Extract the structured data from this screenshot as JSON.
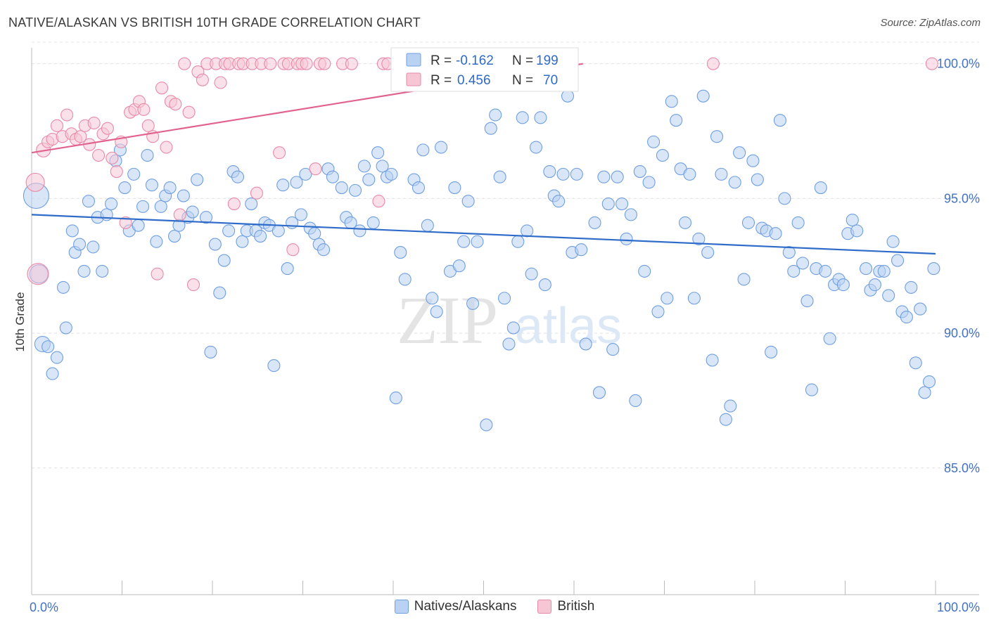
{
  "title": "NATIVE/ALASKAN VS BRITISH 10TH GRADE CORRELATION CHART",
  "source": "Source: ZipAtlas.com",
  "chart_data": {
    "type": "scatter",
    "ylabel": "10th Grade",
    "xlim": [
      0,
      100
    ],
    "ylim": [
      80.3,
      100.8
    ],
    "x_tick_labels": [
      "0.0%",
      "100.0%"
    ],
    "y_ticks": [
      85,
      90,
      95,
      100
    ],
    "y_tick_labels": [
      "85.0%",
      "90.0%",
      "95.0%",
      "100.0%"
    ],
    "grid": true,
    "legend_position": "top-center",
    "series": [
      {
        "name": "Natives/Alaskans",
        "color": "#6f9fe0",
        "fill": "#b9d1f3",
        "R": "-0.162",
        "N": "199",
        "trend": [
          [
            0,
            94.4
          ],
          [
            100,
            92.95
          ]
        ],
        "points": [
          [
            0.5,
            95.1
          ],
          [
            0.8,
            92.2
          ],
          [
            1.2,
            89.6
          ],
          [
            1.8,
            89.5
          ],
          [
            2.3,
            88.5
          ],
          [
            2.8,
            89.1
          ],
          [
            3.5,
            91.7
          ],
          [
            3.8,
            90.2
          ],
          [
            4.5,
            93.8
          ],
          [
            4.8,
            93.0
          ],
          [
            5.3,
            93.3
          ],
          [
            5.8,
            92.3
          ],
          [
            6.3,
            94.9
          ],
          [
            6.8,
            93.2
          ],
          [
            7.3,
            94.3
          ],
          [
            7.8,
            92.3
          ],
          [
            8.3,
            94.4
          ],
          [
            8.8,
            94.8
          ],
          [
            9.3,
            96.4
          ],
          [
            9.8,
            96.8
          ],
          [
            10.3,
            95.4
          ],
          [
            10.8,
            93.8
          ],
          [
            11.3,
            95.9
          ],
          [
            11.8,
            94.0
          ],
          [
            12.3,
            94.7
          ],
          [
            12.8,
            96.6
          ],
          [
            13.3,
            95.5
          ],
          [
            13.8,
            93.4
          ],
          [
            14.3,
            94.7
          ],
          [
            14.8,
            95.1
          ],
          [
            15.3,
            95.4
          ],
          [
            15.8,
            93.6
          ],
          [
            16.3,
            94.0
          ],
          [
            16.8,
            95.1
          ],
          [
            17.3,
            94.3
          ],
          [
            17.8,
            94.5
          ],
          [
            18.3,
            95.7
          ],
          [
            19.3,
            94.3
          ],
          [
            19.8,
            89.3
          ],
          [
            20.3,
            93.3
          ],
          [
            20.8,
            91.5
          ],
          [
            21.3,
            92.7
          ],
          [
            21.8,
            93.8
          ],
          [
            22.3,
            96.0
          ],
          [
            22.8,
            95.8
          ],
          [
            23.3,
            93.4
          ],
          [
            23.8,
            93.8
          ],
          [
            24.3,
            94.8
          ],
          [
            24.8,
            93.8
          ],
          [
            25.3,
            93.6
          ],
          [
            25.8,
            94.1
          ],
          [
            26.3,
            94.0
          ],
          [
            26.8,
            88.8
          ],
          [
            27.3,
            93.8
          ],
          [
            27.8,
            95.5
          ],
          [
            28.3,
            92.4
          ],
          [
            28.8,
            94.1
          ],
          [
            29.3,
            95.6
          ],
          [
            29.8,
            94.4
          ],
          [
            30.3,
            95.9
          ],
          [
            30.8,
            93.9
          ],
          [
            31.3,
            93.7
          ],
          [
            31.8,
            93.3
          ],
          [
            32.3,
            93.1
          ],
          [
            32.8,
            96.1
          ],
          [
            33.3,
            95.8
          ],
          [
            34.3,
            95.4
          ],
          [
            34.8,
            94.3
          ],
          [
            35.3,
            94.1
          ],
          [
            35.8,
            95.3
          ],
          [
            36.3,
            93.8
          ],
          [
            36.8,
            96.2
          ],
          [
            37.3,
            95.7
          ],
          [
            37.8,
            94.1
          ],
          [
            38.3,
            96.7
          ],
          [
            38.8,
            96.2
          ],
          [
            39.3,
            95.8
          ],
          [
            39.8,
            95.9
          ],
          [
            40.3,
            87.6
          ],
          [
            40.8,
            93.0
          ],
          [
            41.3,
            92.0
          ],
          [
            42.3,
            95.7
          ],
          [
            42.8,
            95.4
          ],
          [
            43.3,
            96.8
          ],
          [
            43.8,
            94.0
          ],
          [
            44.3,
            91.3
          ],
          [
            44.8,
            90.8
          ],
          [
            45.3,
            96.9
          ],
          [
            46.3,
            92.3
          ],
          [
            46.8,
            95.4
          ],
          [
            47.3,
            92.5
          ],
          [
            47.8,
            93.4
          ],
          [
            48.3,
            94.9
          ],
          [
            48.8,
            91.1
          ],
          [
            49.3,
            93.4
          ],
          [
            50.3,
            86.6
          ],
          [
            50.8,
            97.6
          ],
          [
            51.3,
            98.1
          ],
          [
            51.8,
            95.8
          ],
          [
            52.3,
            91.3
          ],
          [
            52.8,
            89.6
          ],
          [
            53.3,
            90.2
          ],
          [
            53.8,
            93.4
          ],
          [
            54.3,
            98.0
          ],
          [
            54.8,
            93.8
          ],
          [
            55.3,
            92.2
          ],
          [
            55.8,
            96.9
          ],
          [
            56.3,
            98.0
          ],
          [
            56.8,
            91.8
          ],
          [
            57.3,
            96.0
          ],
          [
            57.8,
            95.1
          ],
          [
            58.3,
            94.9
          ],
          [
            58.8,
            95.9
          ],
          [
            59.3,
            98.8
          ],
          [
            59.8,
            93.0
          ],
          [
            60.3,
            95.9
          ],
          [
            60.8,
            93.1
          ],
          [
            61.3,
            89.6
          ],
          [
            62.3,
            94.1
          ],
          [
            62.8,
            87.8
          ],
          [
            63.3,
            95.8
          ],
          [
            63.8,
            94.8
          ],
          [
            64.3,
            89.4
          ],
          [
            64.8,
            95.8
          ],
          [
            65.3,
            94.8
          ],
          [
            65.8,
            93.5
          ],
          [
            66.3,
            94.4
          ],
          [
            66.8,
            87.5
          ],
          [
            67.3,
            96.0
          ],
          [
            67.8,
            92.3
          ],
          [
            68.3,
            95.6
          ],
          [
            68.8,
            97.1
          ],
          [
            69.3,
            90.8
          ],
          [
            69.8,
            96.6
          ],
          [
            70.3,
            91.3
          ],
          [
            70.8,
            98.6
          ],
          [
            71.3,
            97.9
          ],
          [
            71.8,
            96.1
          ],
          [
            72.3,
            94.1
          ],
          [
            72.8,
            95.9
          ],
          [
            73.3,
            91.3
          ],
          [
            73.8,
            93.5
          ],
          [
            74.3,
            98.8
          ],
          [
            74.8,
            93.0
          ],
          [
            75.3,
            89.0
          ],
          [
            75.8,
            97.3
          ],
          [
            76.3,
            95.9
          ],
          [
            76.8,
            86.8
          ],
          [
            77.3,
            87.3
          ],
          [
            77.8,
            95.6
          ],
          [
            78.3,
            96.7
          ],
          [
            78.8,
            92.0
          ],
          [
            79.3,
            94.1
          ],
          [
            79.8,
            96.4
          ],
          [
            80.3,
            95.7
          ],
          [
            80.8,
            93.9
          ],
          [
            81.3,
            93.8
          ],
          [
            81.8,
            89.3
          ],
          [
            82.3,
            93.7
          ],
          [
            82.8,
            97.9
          ],
          [
            83.3,
            95.0
          ],
          [
            83.8,
            93.0
          ],
          [
            84.3,
            92.3
          ],
          [
            84.8,
            94.1
          ],
          [
            85.3,
            92.6
          ],
          [
            85.8,
            91.2
          ],
          [
            86.3,
            87.9
          ],
          [
            86.8,
            92.4
          ],
          [
            87.3,
            95.4
          ],
          [
            87.8,
            92.3
          ],
          [
            88.3,
            89.8
          ],
          [
            88.8,
            91.8
          ],
          [
            89.3,
            92.0
          ],
          [
            89.8,
            91.8
          ],
          [
            90.3,
            93.7
          ],
          [
            90.8,
            94.2
          ],
          [
            91.3,
            93.8
          ],
          [
            92.3,
            92.4
          ],
          [
            92.8,
            91.6
          ],
          [
            93.3,
            91.8
          ],
          [
            93.8,
            92.3
          ],
          [
            94.3,
            92.3
          ],
          [
            94.8,
            91.4
          ],
          [
            95.3,
            93.4
          ],
          [
            95.8,
            92.7
          ],
          [
            96.3,
            90.8
          ],
          [
            96.8,
            90.6
          ],
          [
            97.3,
            91.7
          ],
          [
            97.8,
            88.9
          ],
          [
            98.3,
            90.9
          ],
          [
            98.8,
            87.8
          ],
          [
            99.3,
            88.2
          ],
          [
            99.8,
            92.4
          ]
        ]
      },
      {
        "name": "British",
        "color": "#e88aa8",
        "fill": "#f6c6d5",
        "R": "0.456",
        "N": "70",
        "trend": [
          [
            0,
            96.7
          ],
          [
            61,
            100.0
          ]
        ],
        "points": [
          [
            0.4,
            95.6
          ],
          [
            0.7,
            92.2
          ],
          [
            1.3,
            96.8
          ],
          [
            1.8,
            97.1
          ],
          [
            2.3,
            97.2
          ],
          [
            2.8,
            97.7
          ],
          [
            3.4,
            97.3
          ],
          [
            3.9,
            98.1
          ],
          [
            4.4,
            97.4
          ],
          [
            4.9,
            97.2
          ],
          [
            5.4,
            97.3
          ],
          [
            5.9,
            97.7
          ],
          [
            6.4,
            97.0
          ],
          [
            6.9,
            97.8
          ],
          [
            7.4,
            96.6
          ],
          [
            7.9,
            97.4
          ],
          [
            8.4,
            97.6
          ],
          [
            8.9,
            96.5
          ],
          [
            9.4,
            96.0
          ],
          [
            9.9,
            97.1
          ],
          [
            10.4,
            94.1
          ],
          [
            10.9,
            98.2
          ],
          [
            11.4,
            98.3
          ],
          [
            11.9,
            98.6
          ],
          [
            12.4,
            98.3
          ],
          [
            12.9,
            97.7
          ],
          [
            13.4,
            97.3
          ],
          [
            13.9,
            92.2
          ],
          [
            14.4,
            99.1
          ],
          [
            14.9,
            96.9
          ],
          [
            15.4,
            98.6
          ],
          [
            15.9,
            98.5
          ],
          [
            16.4,
            94.4
          ],
          [
            16.9,
            100.0
          ],
          [
            17.4,
            98.2
          ],
          [
            17.9,
            91.8
          ],
          [
            18.4,
            99.7
          ],
          [
            18.9,
            99.4
          ],
          [
            19.4,
            100.0
          ],
          [
            20.4,
            100.0
          ],
          [
            20.9,
            99.3
          ],
          [
            21.4,
            100.0
          ],
          [
            21.9,
            100.0
          ],
          [
            22.4,
            94.8
          ],
          [
            22.9,
            100.0
          ],
          [
            23.4,
            100.0
          ],
          [
            24.4,
            100.0
          ],
          [
            24.9,
            95.2
          ],
          [
            25.4,
            100.0
          ],
          [
            26.4,
            100.0
          ],
          [
            27.4,
            96.7
          ],
          [
            27.9,
            100.0
          ],
          [
            28.4,
            100.0
          ],
          [
            28.9,
            93.1
          ],
          [
            29.4,
            100.0
          ],
          [
            29.9,
            100.0
          ],
          [
            30.4,
            100.0
          ],
          [
            31.4,
            96.1
          ],
          [
            31.9,
            100.0
          ],
          [
            32.4,
            100.0
          ],
          [
            34.4,
            100.0
          ],
          [
            35.4,
            100.0
          ],
          [
            38.4,
            94.9
          ],
          [
            38.9,
            100.0
          ],
          [
            39.4,
            100.0
          ],
          [
            40.4,
            100.0
          ],
          [
            47.4,
            100.0
          ],
          [
            50.4,
            100.0
          ],
          [
            75.4,
            100.0
          ],
          [
            99.6,
            100.0
          ]
        ]
      }
    ]
  }
}
